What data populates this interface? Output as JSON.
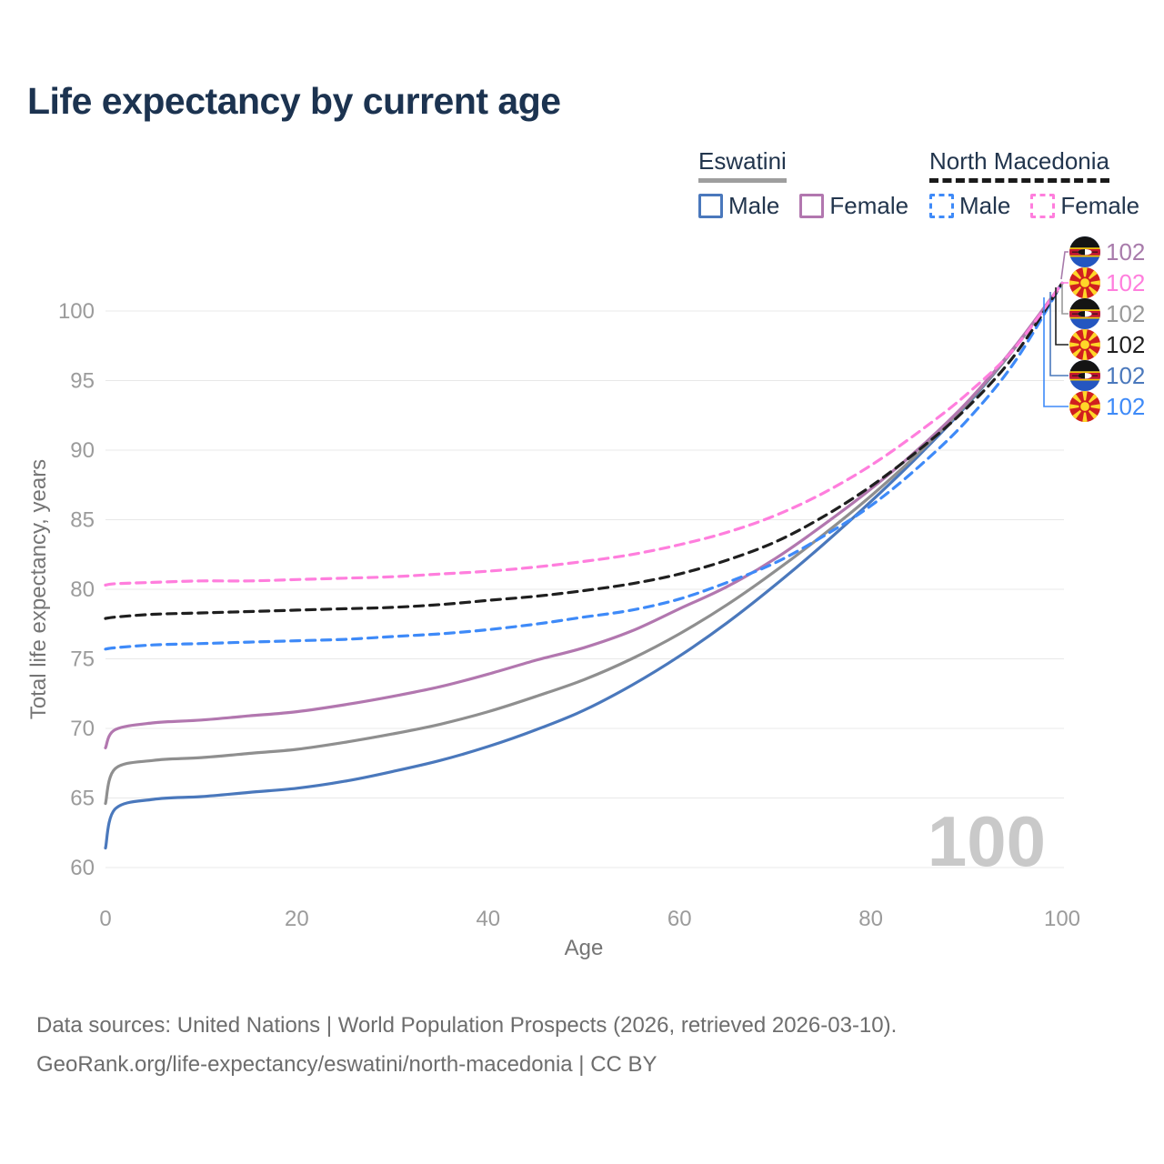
{
  "header": {
    "title": "Life expectancy by current age"
  },
  "legend": {
    "groups": [
      {
        "label": "Eswatini",
        "line_style": "solid",
        "underline_color": "#9e9e9e",
        "items": [
          {
            "label": "Male",
            "color": "#4a78bc"
          },
          {
            "label": "Female",
            "color": "#b277af"
          }
        ]
      },
      {
        "label": "North Macedonia",
        "line_style": "dashed",
        "underline_color": "#1a1a1a",
        "items": [
          {
            "label": "Male",
            "color": "#3e8af8"
          },
          {
            "label": "Female",
            "color": "#ff7edd"
          }
        ]
      }
    ]
  },
  "chart_data": {
    "type": "line",
    "title": "Life expectancy by current age",
    "xlabel": "Age",
    "ylabel": "Total life expectancy, years",
    "xlim": [
      0,
      100
    ],
    "ylim": [
      58.5,
      103
    ],
    "xticks": [
      0,
      20,
      40,
      60,
      80,
      100
    ],
    "yticks": [
      60,
      65,
      70,
      75,
      80,
      85,
      90,
      95,
      100
    ],
    "grid": "horizontal-only",
    "legend_position": "top-right",
    "watermark": "100",
    "x": [
      0,
      1,
      5,
      10,
      15,
      20,
      25,
      30,
      35,
      40,
      45,
      50,
      55,
      60,
      65,
      70,
      75,
      80,
      85,
      90,
      95,
      100
    ],
    "series": [
      {
        "id": "eswatini-male",
        "name": "Eswatini — Male",
        "style": "solid",
        "color": "#4a78bc",
        "values": [
          61.4,
          64.2,
          64.9,
          65.1,
          65.4,
          65.7,
          66.2,
          66.9,
          67.7,
          68.7,
          69.9,
          71.3,
          73.1,
          75.2,
          77.6,
          80.3,
          83.2,
          86.3,
          89.6,
          93.2,
          97.3,
          102
        ]
      },
      {
        "id": "eswatini-both",
        "name": "Eswatini — Both sexes",
        "style": "solid",
        "color": "#8f8f8f",
        "values": [
          64.6,
          67.1,
          67.7,
          67.9,
          68.2,
          68.5,
          69.0,
          69.6,
          70.3,
          71.2,
          72.3,
          73.5,
          75.0,
          76.8,
          78.9,
          81.3,
          83.9,
          86.7,
          89.8,
          93.3,
          97.3,
          102
        ]
      },
      {
        "id": "eswatini-female",
        "name": "Eswatini — Female",
        "style": "solid",
        "color": "#b277af",
        "values": [
          68.6,
          69.9,
          70.4,
          70.6,
          70.9,
          71.2,
          71.7,
          72.3,
          73.0,
          73.9,
          74.9,
          75.8,
          77.0,
          78.6,
          80.2,
          82.2,
          84.6,
          87.2,
          90.1,
          93.4,
          97.4,
          102
        ]
      },
      {
        "id": "north-macedonia-male",
        "name": "North Macedonia — Male",
        "style": "dashed",
        "color": "#3e8af8",
        "values": [
          75.7,
          75.8,
          76.0,
          76.1,
          76.2,
          76.3,
          76.4,
          76.6,
          76.8,
          77.1,
          77.5,
          78.0,
          78.5,
          79.3,
          80.5,
          81.9,
          83.8,
          86.0,
          88.8,
          92.1,
          96.3,
          102
        ]
      },
      {
        "id": "north-macedonia-both",
        "name": "North Macedonia — Both sexes",
        "style": "dashed",
        "color": "#1f1f1f",
        "values": [
          77.9,
          78.0,
          78.2,
          78.3,
          78.4,
          78.5,
          78.6,
          78.7,
          78.9,
          79.2,
          79.5,
          79.9,
          80.4,
          81.1,
          82.1,
          83.4,
          85.2,
          87.4,
          90.0,
          93.0,
          96.8,
          102
        ]
      },
      {
        "id": "north-macedonia-female",
        "name": "North Macedonia — Female",
        "style": "dashed",
        "color": "#ff7edd",
        "values": [
          80.3,
          80.4,
          80.5,
          80.6,
          80.6,
          80.7,
          80.8,
          80.9,
          81.1,
          81.3,
          81.6,
          82.0,
          82.5,
          83.2,
          84.1,
          85.3,
          86.9,
          88.9,
          91.3,
          94.0,
          97.3,
          102
        ]
      }
    ],
    "end_labels": [
      {
        "flag": "eswatini",
        "series": "eswatini-female",
        "value": "102",
        "color": "#a87bab"
      },
      {
        "flag": "north-macedonia",
        "series": "north-macedonia-female",
        "value": "102",
        "color": "#ff7edd"
      },
      {
        "flag": "eswatini",
        "series": "eswatini-both",
        "value": "102",
        "color": "#9a9a9a"
      },
      {
        "flag": "north-macedonia",
        "series": "north-macedonia-both",
        "value": "102",
        "color": "#1f1f1f"
      },
      {
        "flag": "eswatini",
        "series": "eswatini-male",
        "value": "102",
        "color": "#4a78bc"
      },
      {
        "flag": "north-macedonia",
        "series": "north-macedonia-male",
        "value": "102",
        "color": "#3e8af8"
      }
    ]
  },
  "footer": {
    "line1": "Data sources: United Nations | World Population Prospects (2026, retrieved 2026-03-10).",
    "line2": "GeoRank.org/life-expectancy/eswatini/north-macedonia | CC BY"
  }
}
